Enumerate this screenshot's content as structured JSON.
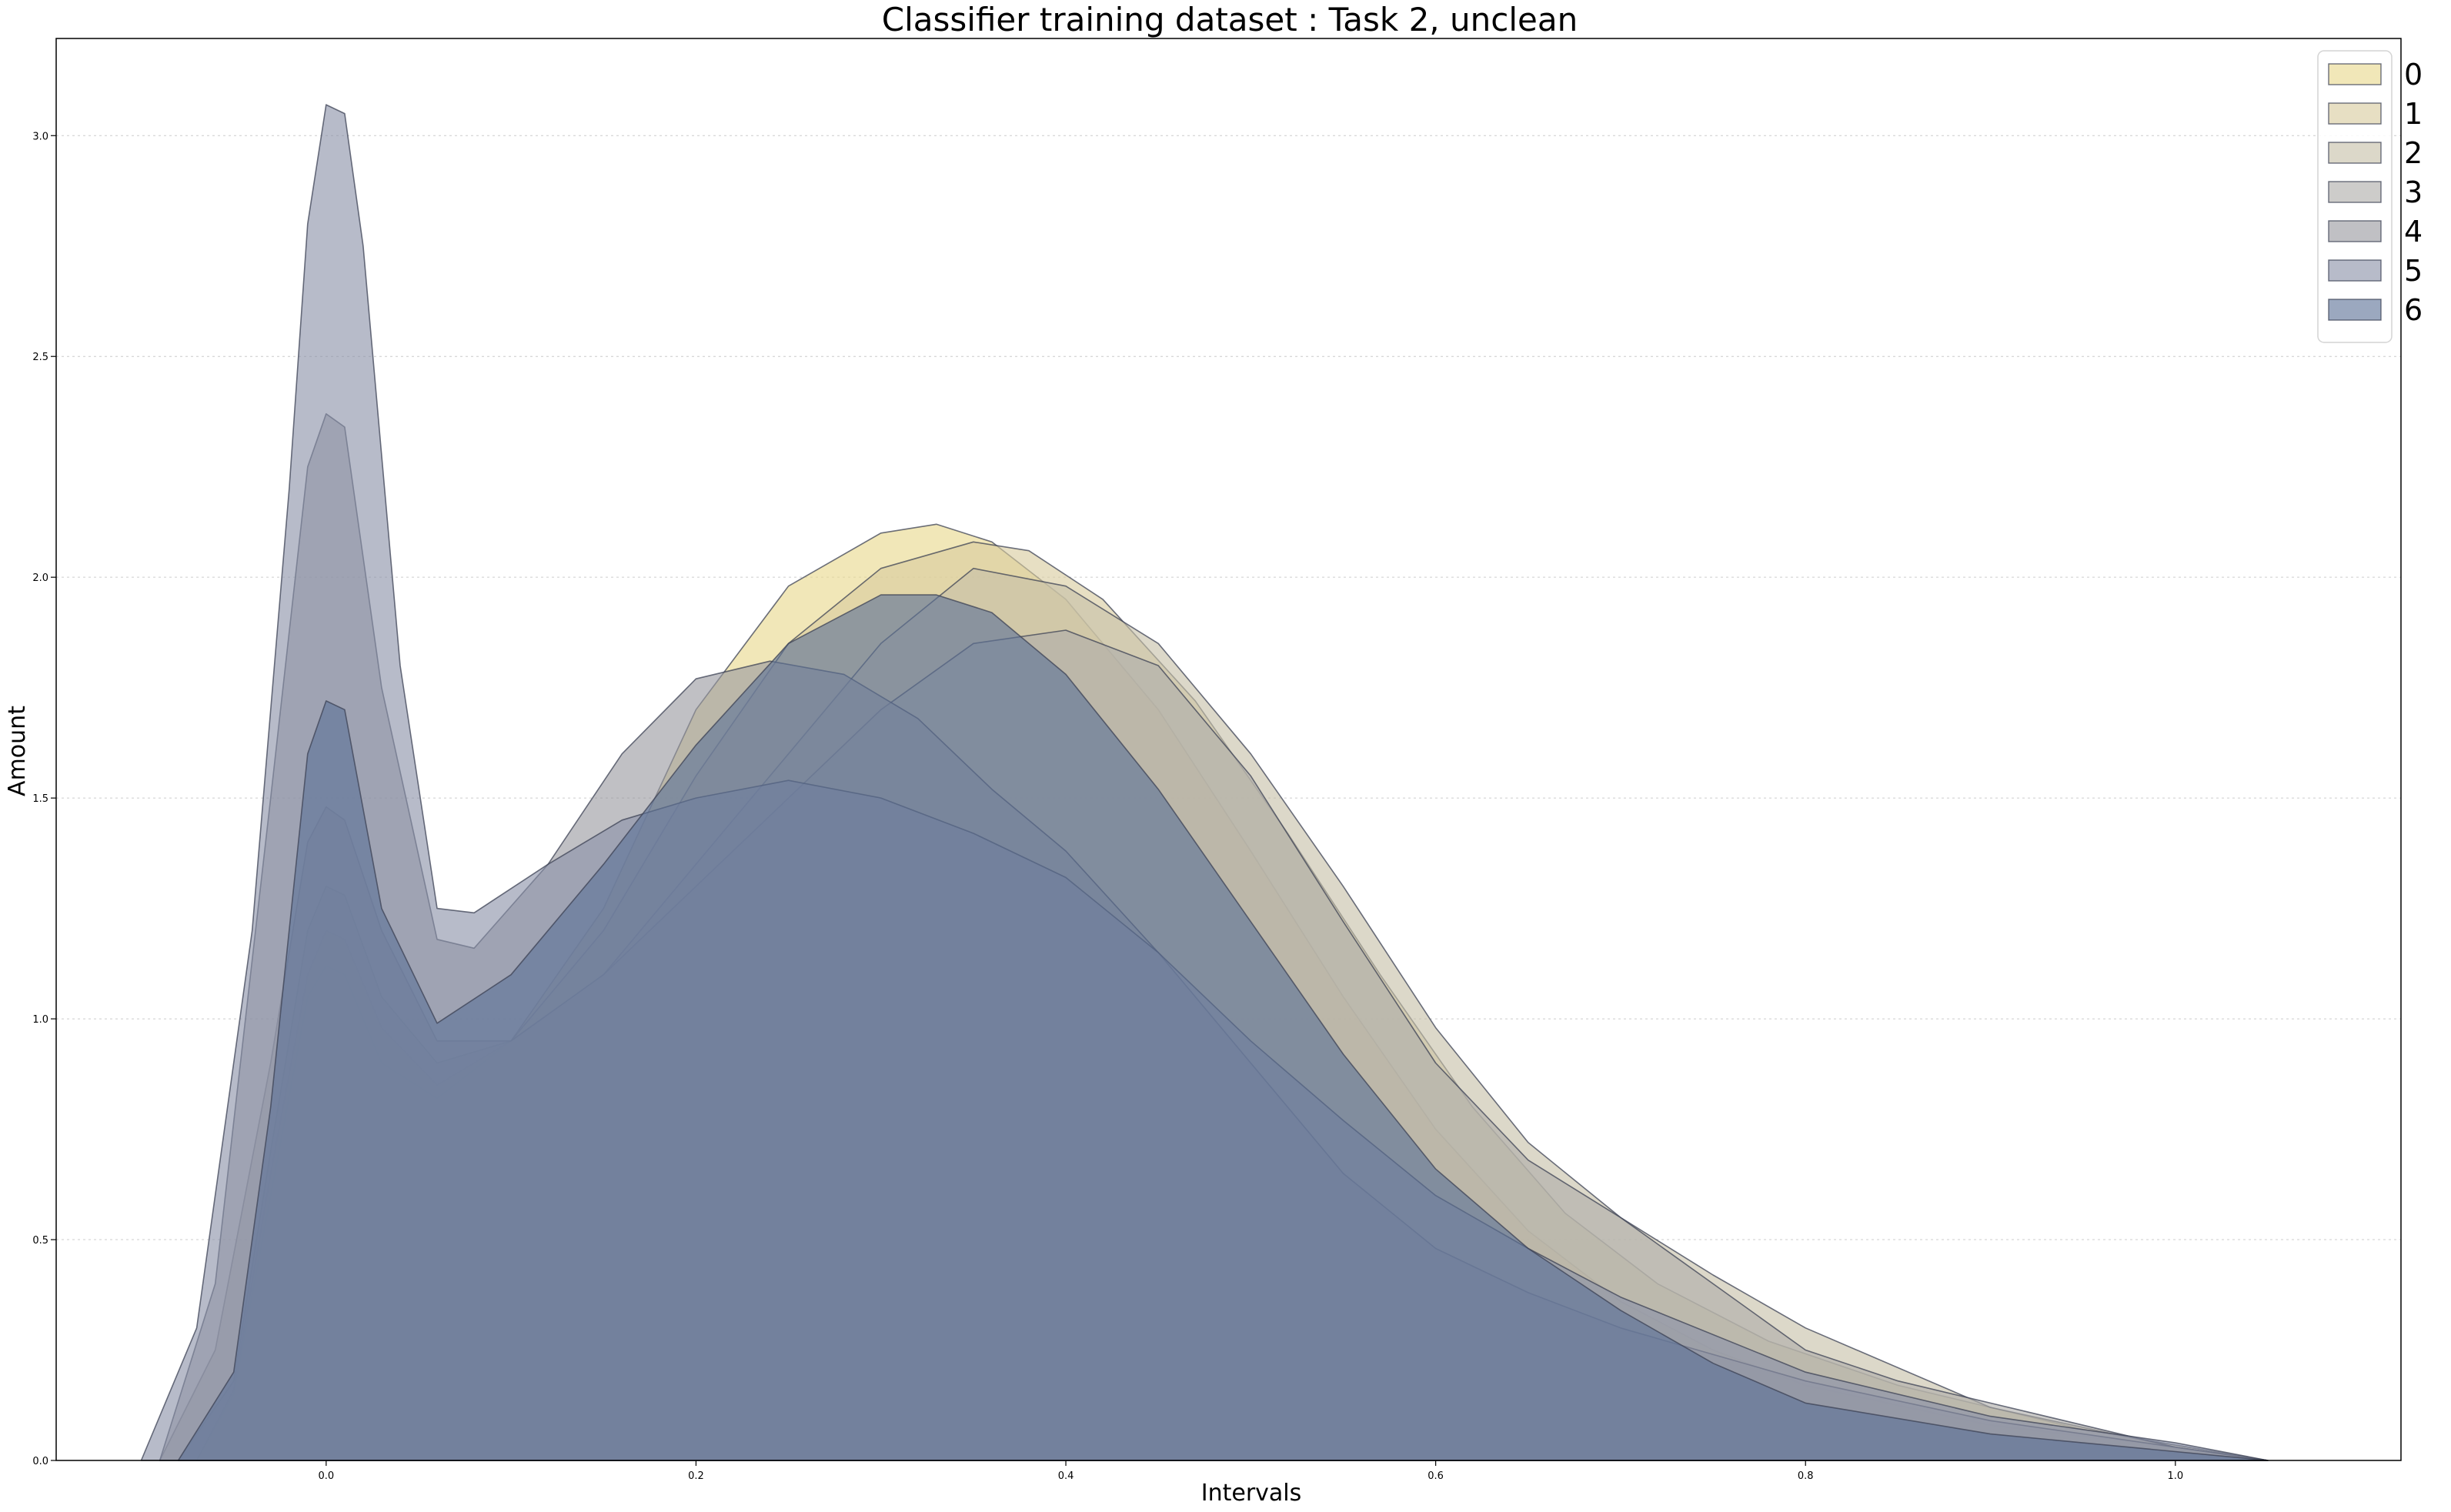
{
  "chart_data": {
    "type": "area",
    "title": "Classifier training dataset : Task 2, unclean",
    "xlabel": "Intervals",
    "ylabel": "Amount",
    "xlim": [
      -0.146,
      1.122
    ],
    "ylim": [
      0,
      3.22
    ],
    "x_ticks": [
      {
        "value": 0.0,
        "label": "0.0"
      },
      {
        "value": 0.2,
        "label": "0.2"
      },
      {
        "value": 0.4,
        "label": "0.4"
      },
      {
        "value": 0.6,
        "label": "0.6"
      },
      {
        "value": 0.8,
        "label": "0.8"
      },
      {
        "value": 1.0,
        "label": "1.0"
      }
    ],
    "y_ticks": [
      {
        "value": 0.0,
        "label": "0.0"
      },
      {
        "value": 0.5,
        "label": "0.5"
      },
      {
        "value": 1.0,
        "label": "1.0"
      },
      {
        "value": 1.5,
        "label": "1.5"
      },
      {
        "value": 2.0,
        "label": "2.0"
      },
      {
        "value": 2.5,
        "label": "2.5"
      },
      {
        "value": 3.0,
        "label": "3.0"
      }
    ],
    "grid": "horizontal dotted",
    "legend_position": "top-right",
    "series": [
      {
        "name": "0",
        "color": "#e8d88c",
        "x": [
          -0.07,
          -0.05,
          -0.03,
          -0.01,
          0.0,
          0.01,
          0.03,
          0.06,
          0.1,
          0.15,
          0.2,
          0.25,
          0.3,
          0.33,
          0.36,
          0.4,
          0.45,
          0.5,
          0.55,
          0.6,
          0.65,
          0.7,
          0.75,
          0.8,
          0.9,
          1.0,
          1.05
        ],
        "y": [
          0,
          0.15,
          0.6,
          1.05,
          1.12,
          1.1,
          0.9,
          0.82,
          0.95,
          1.25,
          1.7,
          1.98,
          2.1,
          2.12,
          2.08,
          1.95,
          1.7,
          1.38,
          1.05,
          0.75,
          0.52,
          0.36,
          0.25,
          0.17,
          0.08,
          0.03,
          0
        ]
      },
      {
        "name": "1",
        "color": "#d9cb9e",
        "x": [
          -0.07,
          -0.05,
          -0.03,
          -0.01,
          0.0,
          0.01,
          0.03,
          0.06,
          0.1,
          0.15,
          0.2,
          0.25,
          0.3,
          0.35,
          0.38,
          0.42,
          0.47,
          0.52,
          0.57,
          0.62,
          0.67,
          0.72,
          0.78,
          0.85,
          0.95,
          1.05
        ],
        "y": [
          0,
          0.16,
          0.65,
          1.1,
          1.2,
          1.18,
          0.98,
          0.85,
          0.95,
          1.2,
          1.55,
          1.85,
          2.02,
          2.08,
          2.06,
          1.95,
          1.72,
          1.42,
          1.1,
          0.8,
          0.56,
          0.4,
          0.27,
          0.17,
          0.07,
          0
        ]
      },
      {
        "name": "2",
        "color": "#c6c0a8",
        "x": [
          -0.08,
          -0.05,
          -0.03,
          -0.01,
          0.0,
          0.01,
          0.03,
          0.06,
          0.1,
          0.15,
          0.2,
          0.25,
          0.3,
          0.35,
          0.4,
          0.45,
          0.5,
          0.55,
          0.6,
          0.65,
          0.7,
          0.75,
          0.8,
          0.9,
          1.0,
          1.05
        ],
        "y": [
          0,
          0.18,
          0.7,
          1.2,
          1.3,
          1.28,
          1.05,
          0.9,
          0.95,
          1.1,
          1.35,
          1.6,
          1.85,
          2.02,
          1.98,
          1.85,
          1.6,
          1.3,
          0.98,
          0.72,
          0.55,
          0.42,
          0.3,
          0.12,
          0.03,
          0
        ]
      },
      {
        "name": "3",
        "color": "#aeaca9",
        "x": [
          -0.09,
          -0.06,
          -0.03,
          -0.01,
          0.0,
          0.01,
          0.03,
          0.06,
          0.1,
          0.15,
          0.2,
          0.25,
          0.3,
          0.35,
          0.4,
          0.45,
          0.5,
          0.55,
          0.6,
          0.65,
          0.7,
          0.75,
          0.8,
          0.85,
          0.9,
          1.0,
          1.05
        ],
        "y": [
          0,
          0.25,
          0.9,
          1.4,
          1.48,
          1.45,
          1.2,
          0.95,
          0.95,
          1.1,
          1.3,
          1.5,
          1.7,
          1.85,
          1.88,
          1.8,
          1.55,
          1.22,
          0.9,
          0.68,
          0.55,
          0.4,
          0.25,
          0.18,
          0.13,
          0.03,
          0
        ]
      },
      {
        "name": "4",
        "color": "#9a9aa0",
        "x": [
          -0.09,
          -0.06,
          -0.03,
          -0.01,
          0.0,
          0.01,
          0.03,
          0.06,
          0.08,
          0.12,
          0.16,
          0.2,
          0.24,
          0.28,
          0.32,
          0.36,
          0.4,
          0.45,
          0.5,
          0.55,
          0.6,
          0.65,
          0.7,
          0.8,
          0.9,
          1.0,
          1.05
        ],
        "y": [
          0,
          0.4,
          1.5,
          2.25,
          2.37,
          2.34,
          1.75,
          1.18,
          1.16,
          1.35,
          1.6,
          1.77,
          1.81,
          1.78,
          1.68,
          1.52,
          1.38,
          1.15,
          0.9,
          0.65,
          0.48,
          0.38,
          0.3,
          0.18,
          0.09,
          0.03,
          0
        ]
      },
      {
        "name": "5",
        "color": "#8a91a8",
        "x": [
          -0.1,
          -0.07,
          -0.04,
          -0.02,
          -0.01,
          0.0,
          0.01,
          0.02,
          0.04,
          0.06,
          0.08,
          0.12,
          0.16,
          0.2,
          0.25,
          0.3,
          0.35,
          0.4,
          0.45,
          0.5,
          0.55,
          0.6,
          0.65,
          0.7,
          0.8,
          0.9,
          1.0,
          1.05
        ],
        "y": [
          0,
          0.3,
          1.2,
          2.2,
          2.8,
          3.07,
          3.05,
          2.75,
          1.8,
          1.25,
          1.24,
          1.35,
          1.45,
          1.5,
          1.54,
          1.5,
          1.42,
          1.32,
          1.15,
          0.95,
          0.77,
          0.6,
          0.48,
          0.37,
          0.2,
          0.1,
          0.04,
          0
        ]
      },
      {
        "name": "6",
        "color": "#5e7398",
        "x": [
          -0.08,
          -0.05,
          -0.03,
          -0.01,
          0.0,
          0.01,
          0.03,
          0.06,
          0.1,
          0.15,
          0.2,
          0.25,
          0.3,
          0.33,
          0.36,
          0.4,
          0.45,
          0.5,
          0.55,
          0.6,
          0.65,
          0.7,
          0.75,
          0.8,
          0.9,
          1.0,
          1.05
        ],
        "y": [
          0,
          0.2,
          0.8,
          1.6,
          1.72,
          1.7,
          1.25,
          0.99,
          1.1,
          1.35,
          1.62,
          1.85,
          1.96,
          1.96,
          1.92,
          1.78,
          1.52,
          1.22,
          0.92,
          0.66,
          0.48,
          0.34,
          0.22,
          0.13,
          0.06,
          0.02,
          0
        ]
      }
    ]
  }
}
